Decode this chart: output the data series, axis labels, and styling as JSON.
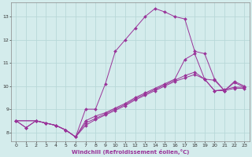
{
  "xlabel": "Windchill (Refroidissement éolien,°C)",
  "bg_color": "#d4ecec",
  "grid_color": "#b8d8d8",
  "line_color": "#993399",
  "xlim": [
    -0.5,
    23.5
  ],
  "ylim": [
    7.6,
    13.6
  ],
  "xticks": [
    0,
    1,
    2,
    3,
    4,
    5,
    6,
    7,
    8,
    9,
    10,
    11,
    12,
    13,
    14,
    15,
    16,
    17,
    18,
    19,
    20,
    21,
    22,
    23
  ],
  "yticks": [
    8,
    9,
    10,
    11,
    12,
    13
  ],
  "lines": [
    {
      "x": [
        0,
        1,
        2,
        3,
        4,
        5,
        6,
        7,
        8,
        9,
        10,
        11,
        12,
        13,
        14,
        15,
        16,
        17,
        18,
        19,
        20,
        21,
        22,
        23
      ],
      "y": [
        8.5,
        8.2,
        8.5,
        8.4,
        8.3,
        8.1,
        7.8,
        9.0,
        9.0,
        10.1,
        11.5,
        12.0,
        12.5,
        13.0,
        13.35,
        13.2,
        13.0,
        12.9,
        11.5,
        11.4,
        10.3,
        9.8,
        10.2,
        10.0
      ]
    },
    {
      "x": [
        0,
        1,
        2,
        3,
        4,
        5,
        6,
        7,
        8,
        9,
        10,
        11,
        12,
        13,
        14,
        15,
        16,
        17,
        18,
        19,
        20,
        21,
        22,
        23
      ],
      "y": [
        8.5,
        8.2,
        8.5,
        8.4,
        8.3,
        8.1,
        7.8,
        8.5,
        8.7,
        8.85,
        9.05,
        9.25,
        9.5,
        9.7,
        9.9,
        10.1,
        10.3,
        11.15,
        11.4,
        10.3,
        10.25,
        9.8,
        10.15,
        9.95
      ]
    },
    {
      "x": [
        0,
        2,
        3,
        4,
        5,
        6,
        7,
        8,
        9,
        10,
        11,
        12,
        13,
        14,
        15,
        16,
        17,
        18,
        19,
        20,
        21,
        22,
        23
      ],
      "y": [
        8.5,
        8.5,
        8.4,
        8.3,
        8.1,
        7.8,
        8.4,
        8.6,
        8.8,
        9.0,
        9.2,
        9.45,
        9.65,
        9.85,
        10.05,
        10.25,
        10.45,
        10.6,
        10.3,
        9.8,
        9.85,
        9.95,
        9.95
      ]
    },
    {
      "x": [
        0,
        2,
        3,
        4,
        5,
        6,
        7,
        8,
        9,
        10,
        11,
        12,
        13,
        14,
        15,
        16,
        17,
        18,
        19,
        20,
        21,
        22,
        23
      ],
      "y": [
        8.5,
        8.5,
        8.4,
        8.3,
        8.1,
        7.8,
        8.3,
        8.55,
        8.75,
        8.95,
        9.15,
        9.4,
        9.6,
        9.8,
        10.0,
        10.2,
        10.35,
        10.5,
        10.3,
        9.8,
        9.8,
        9.9,
        9.9
      ]
    }
  ]
}
